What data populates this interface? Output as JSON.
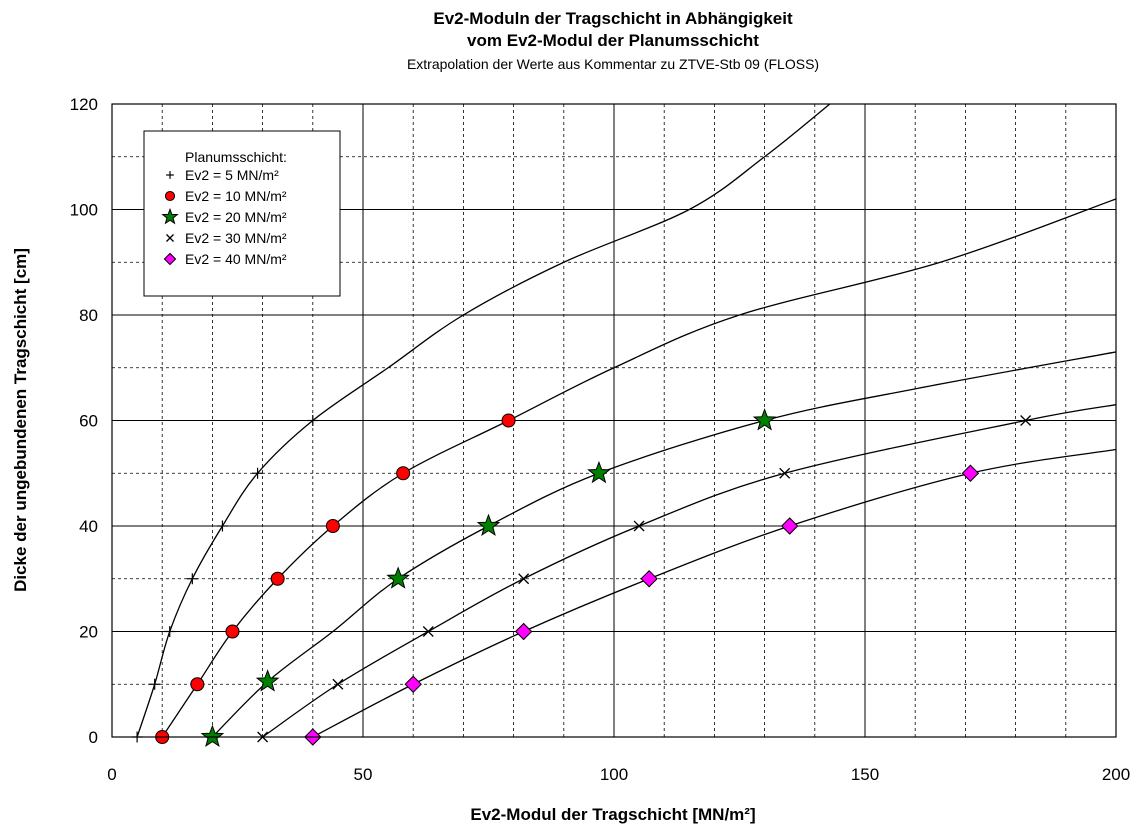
{
  "chart_data": {
    "type": "scatter",
    "title": "Ev2-Moduln der Tragschicht in Abhängigkeit",
    "title_line2": "vom Ev2-Modul der Planumsschicht",
    "subtitle": "Extrapolation der Werte aus Kommentar zu ZTVE-Stb 09 (FLOSS)",
    "xlabel": "Ev2-Modul der Tragschicht [MN/m²]",
    "ylabel": "Dicke der ungebundenen Tragschicht [cm]",
    "xlim": [
      0,
      200
    ],
    "ylim": [
      0,
      120
    ],
    "x_ticks": [
      "0",
      "50",
      "100",
      "150",
      "200"
    ],
    "y_ticks": [
      "0",
      "20",
      "40",
      "60",
      "80",
      "100",
      "120"
    ],
    "grid": true,
    "legend_title": "Planumsschicht:",
    "legend_position": "top-left",
    "series": [
      {
        "name": "Ev2 = 5 MN/m²",
        "marker": "plus",
        "color": "#000000",
        "points": [
          [
            5,
            0
          ],
          [
            8.5,
            10
          ],
          [
            11.5,
            20
          ],
          [
            16,
            30
          ],
          [
            22,
            40
          ],
          [
            29,
            50
          ],
          [
            40,
            60
          ]
        ],
        "curve": [
          [
            5,
            0
          ],
          [
            8.5,
            10
          ],
          [
            11.5,
            20
          ],
          [
            16,
            30
          ],
          [
            22,
            40
          ],
          [
            29,
            50
          ],
          [
            40,
            60
          ],
          [
            55,
            70
          ],
          [
            70,
            80
          ],
          [
            90,
            90
          ],
          [
            115,
            100
          ],
          [
            130,
            110
          ],
          [
            143,
            120
          ]
        ]
      },
      {
        "name": "Ev2 = 10 MN/m²",
        "marker": "circle",
        "color": "#ff0000",
        "points": [
          [
            10,
            0
          ],
          [
            17,
            10
          ],
          [
            24,
            20
          ],
          [
            33,
            30
          ],
          [
            44,
            40
          ],
          [
            58,
            50
          ],
          [
            79,
            60
          ]
        ],
        "curve": [
          [
            10,
            0
          ],
          [
            17,
            10
          ],
          [
            24,
            20
          ],
          [
            33,
            30
          ],
          [
            44,
            40
          ],
          [
            58,
            50
          ],
          [
            79,
            60
          ],
          [
            100,
            70
          ],
          [
            125,
            80
          ],
          [
            165,
            90
          ],
          [
            200,
            102
          ]
        ]
      },
      {
        "name": "Ev2 = 20 MN/m²",
        "marker": "star",
        "color": "#008000",
        "points": [
          [
            20,
            0
          ],
          [
            31,
            10.5
          ],
          [
            57,
            30
          ],
          [
            75,
            40
          ],
          [
            97,
            50
          ],
          [
            130,
            60
          ]
        ],
        "curve": [
          [
            20,
            0
          ],
          [
            31,
            10.5
          ],
          [
            44,
            20
          ],
          [
            57,
            30
          ],
          [
            75,
            40
          ],
          [
            97,
            50
          ],
          [
            130,
            60
          ],
          [
            160,
            66
          ],
          [
            200,
            73
          ]
        ]
      },
      {
        "name": "Ev2 = 30 MN/m²",
        "marker": "x",
        "color": "#000000",
        "points": [
          [
            30,
            0
          ],
          [
            45,
            10
          ],
          [
            63,
            20
          ],
          [
            82,
            30
          ],
          [
            105,
            40
          ],
          [
            134,
            50
          ],
          [
            182,
            60
          ]
        ],
        "curve": [
          [
            30,
            0
          ],
          [
            45,
            10
          ],
          [
            63,
            20
          ],
          [
            82,
            30
          ],
          [
            105,
            40
          ],
          [
            134,
            50
          ],
          [
            182,
            60
          ],
          [
            200,
            63
          ]
        ]
      },
      {
        "name": "Ev2 = 40 MN/m²",
        "marker": "diamond",
        "color": "#ff00ff",
        "points": [
          [
            40,
            0
          ],
          [
            60,
            10
          ],
          [
            82,
            20
          ],
          [
            107,
            30
          ],
          [
            135,
            40
          ],
          [
            171,
            50
          ]
        ],
        "curve": [
          [
            40,
            0
          ],
          [
            60,
            10
          ],
          [
            82,
            20
          ],
          [
            107,
            30
          ],
          [
            135,
            40
          ],
          [
            171,
            50
          ],
          [
            200,
            54.5
          ]
        ]
      }
    ]
  }
}
